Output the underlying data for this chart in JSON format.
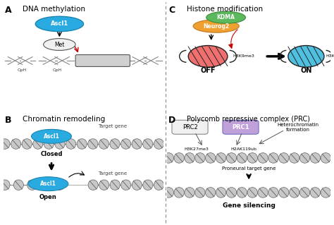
{
  "panel_A_title": "DNA methylation",
  "panel_B_title": "Chromatin remodeling",
  "panel_C_title": "Histone modification",
  "panel_D_title": "Polycomb repressive complex (PRC)",
  "ascl1_color": "#29ABE2",
  "ascl1_edge": "#1a85b0",
  "kdma_color": "#5CB85C",
  "kdma_edge": "#3a8a3a",
  "neurog2_color": "#F0A030",
  "neurog2_edge": "#c07820",
  "met_color": "#F0F0F0",
  "target_gene_color": "#D0D0D0",
  "off_histone_color": "#F07070",
  "on_histone_color": "#50C0E0",
  "prc2_color": "#F0F0F0",
  "prc1_color": "#C0A0D8",
  "arrow_red": "#CC0000",
  "chromatin_color": "#C8C8C8",
  "chromatin_edge": "#606060",
  "divider_color": "#777777"
}
